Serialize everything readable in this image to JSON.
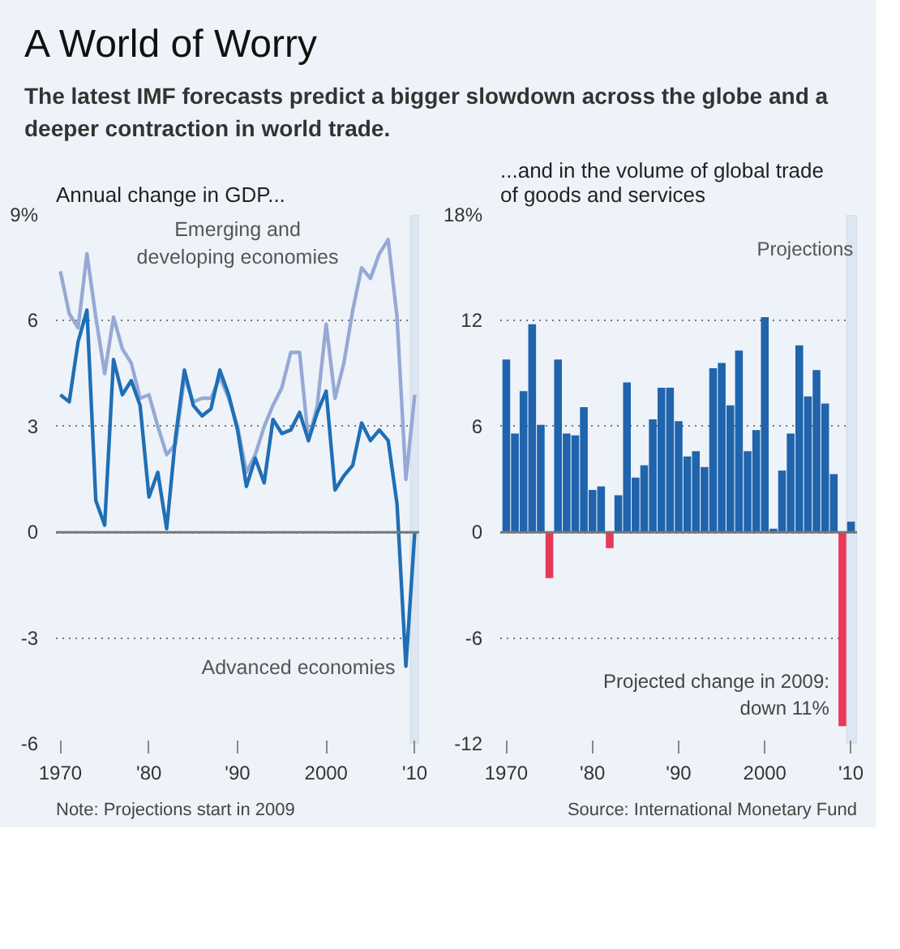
{
  "chart_data": [
    {
      "type": "other",
      "title": "A World of Worry",
      "subtitle": "The latest IMF forecasts predict a bigger slowdown across the globe and a deeper contraction in world trade."
    },
    {
      "type": "line",
      "title": "Annual change in GDP...",
      "annotations": [
        "Note: Projections start in 2009"
      ],
      "x": [
        1970,
        1971,
        1972,
        1973,
        1974,
        1975,
        1976,
        1977,
        1978,
        1979,
        1980,
        1981,
        1982,
        1983,
        1984,
        1985,
        1986,
        1987,
        1988,
        1989,
        1990,
        1991,
        1992,
        1993,
        1994,
        1995,
        1996,
        1997,
        1998,
        1999,
        2000,
        2001,
        2002,
        2003,
        2004,
        2005,
        2006,
        2007,
        2008,
        2009,
        2010
      ],
      "series": [
        {
          "name": "Emerging and developing economies",
          "color": "#96a9d6",
          "values": [
            7.4,
            6.2,
            5.8,
            7.9,
            6.1,
            4.5,
            6.1,
            5.2,
            4.8,
            3.8,
            3.9,
            3.0,
            2.2,
            2.5,
            4.4,
            3.7,
            3.8,
            3.8,
            4.4,
            3.8,
            3.0,
            1.7,
            2.2,
            3.0,
            3.6,
            4.1,
            5.1,
            5.1,
            2.6,
            3.6,
            5.9,
            3.8,
            4.8,
            6.3,
            7.5,
            7.2,
            7.9,
            8.3,
            6.1,
            1.5,
            3.9
          ]
        },
        {
          "name": "Advanced economies",
          "color": "#1f6fb5",
          "values": [
            3.9,
            3.7,
            5.4,
            6.3,
            0.9,
            0.2,
            4.9,
            3.9,
            4.3,
            3.6,
            1.0,
            1.7,
            0.1,
            2.7,
            4.6,
            3.6,
            3.3,
            3.5,
            4.6,
            3.9,
            2.9,
            1.3,
            2.1,
            1.4,
            3.2,
            2.8,
            2.9,
            3.4,
            2.6,
            3.4,
            4.0,
            1.2,
            1.6,
            1.9,
            3.1,
            2.6,
            2.9,
            2.6,
            0.8,
            -3.8,
            0.0
          ]
        }
      ],
      "xlim": [
        1969.5,
        2010.5
      ],
      "ylim": [
        -6,
        9
      ],
      "xticks": [
        1970,
        {
          "value": 1980,
          "label": "'80"
        },
        {
          "value": 1990,
          "label": "'90"
        },
        2000,
        {
          "value": 2010,
          "label": "'10"
        }
      ],
      "yticks": [
        -6,
        -3,
        0,
        3,
        6,
        {
          "value": 9,
          "label": "9%"
        }
      ],
      "grid": "y",
      "line_style": "solid",
      "ref_lines": [
        {
          "axis": "y",
          "value": 0,
          "color": "#777777"
        }
      ],
      "bands": [
        {
          "axis": "x",
          "from": 2009.5,
          "to": 2010.5,
          "color": "#dbe7f3"
        }
      ]
    },
    {
      "type": "bar",
      "title": "...and in the volume of global trade of goods and services",
      "annotations": [
        "Source: International Monetary Fund",
        {
          "text": "Projected change in 2009:\ndown 11%",
          "x": 2009,
          "y": -11
        }
      ],
      "x": [
        1970,
        1971,
        1972,
        1973,
        1974,
        1975,
        1976,
        1977,
        1978,
        1979,
        1980,
        1981,
        1982,
        1983,
        1984,
        1985,
        1986,
        1987,
        1988,
        1989,
        1990,
        1991,
        1992,
        1993,
        1994,
        1995,
        1996,
        1997,
        1998,
        1999,
        2000,
        2001,
        2002,
        2003,
        2004,
        2005,
        2006,
        2007,
        2008,
        2009,
        2010
      ],
      "values": [
        9.8,
        5.6,
        8.0,
        11.8,
        6.1,
        -2.6,
        9.8,
        5.6,
        5.5,
        7.1,
        2.4,
        2.6,
        -0.9,
        2.1,
        8.5,
        3.1,
        3.8,
        6.4,
        8.2,
        8.2,
        6.3,
        4.3,
        4.6,
        3.7,
        9.3,
        9.6,
        7.2,
        10.3,
        4.6,
        5.8,
        12.2,
        0.2,
        3.5,
        5.6,
        10.6,
        7.7,
        9.2,
        7.3,
        3.3,
        -11.0,
        0.6
      ],
      "colors": [
        "#1f64ac",
        "#1f64ac",
        "#1f64ac",
        "#1f64ac",
        "#1f64ac",
        "#e8385a",
        "#1f64ac",
        "#1f64ac",
        "#1f64ac",
        "#1f64ac",
        "#1f64ac",
        "#1f64ac",
        "#e8385a",
        "#1f64ac",
        "#1f64ac",
        "#1f64ac",
        "#1f64ac",
        "#1f64ac",
        "#1f64ac",
        "#1f64ac",
        "#1f64ac",
        "#1f64ac",
        "#1f64ac",
        "#1f64ac",
        "#1f64ac",
        "#1f64ac",
        "#1f64ac",
        "#1f64ac",
        "#1f64ac",
        "#1f64ac",
        "#1f64ac",
        "#1f64ac",
        "#1f64ac",
        "#1f64ac",
        "#1f64ac",
        "#1f64ac",
        "#1f64ac",
        "#1f64ac",
        "#1f64ac",
        "#e8385a",
        "#1f64ac"
      ],
      "xlim": [
        1969.3,
        2010.7
      ],
      "ylim": [
        -12,
        18
      ],
      "xticks": [
        1970,
        {
          "value": 1980,
          "label": "'80"
        },
        {
          "value": 1990,
          "label": "'90"
        },
        2000,
        {
          "value": 2010,
          "label": "'10"
        }
      ],
      "yticks": [
        -12,
        -6,
        0,
        6,
        12,
        {
          "value": 18,
          "label": "18%"
        }
      ],
      "grid": "y",
      "ref_lines": [
        {
          "axis": "y",
          "value": 0,
          "color": "#777777"
        }
      ],
      "bands": [
        {
          "axis": "x",
          "from": 2009.5,
          "to": 2010.7,
          "label": "Projections",
          "color": "#dbe7f3"
        }
      ]
    }
  ]
}
